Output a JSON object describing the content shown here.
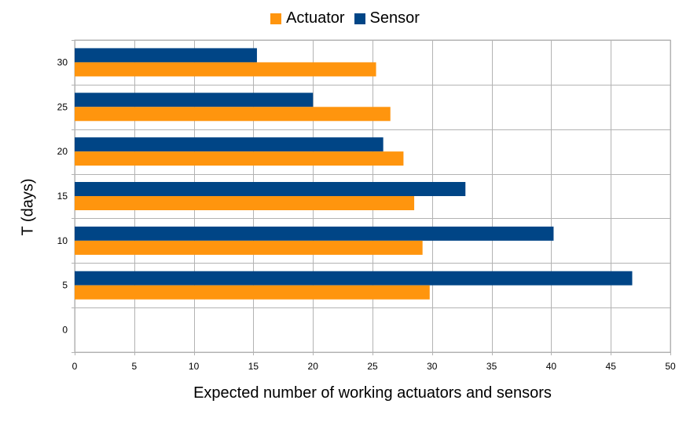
{
  "chart_data": {
    "type": "bar",
    "orientation": "horizontal",
    "categories": [
      "0",
      "5",
      "10",
      "15",
      "20",
      "25",
      "30"
    ],
    "series": [
      {
        "name": "Actuator",
        "color": "#FF950E",
        "values": [
          0,
          29.8,
          29.2,
          28.5,
          27.6,
          26.5,
          25.3
        ]
      },
      {
        "name": "Sensor",
        "color": "#004586",
        "values": [
          0,
          46.8,
          40.2,
          32.8,
          25.9,
          20.0,
          15.3
        ]
      }
    ],
    "xlabel": "Expected number of working actuators and sensors",
    "ylabel": "T (days)",
    "xlim": [
      0,
      50
    ],
    "xticks": [
      0,
      5,
      10,
      15,
      20,
      25,
      30,
      35,
      40,
      45,
      50
    ],
    "grid": true,
    "legend": "top-center"
  }
}
